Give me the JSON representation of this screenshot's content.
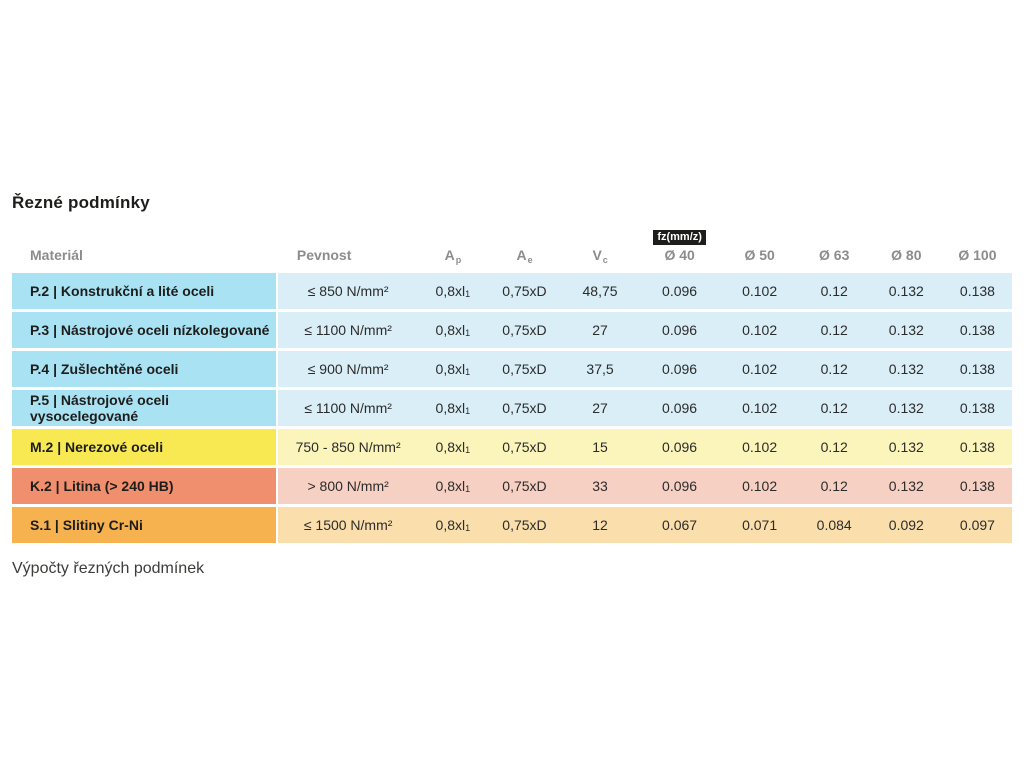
{
  "page": {
    "title": "Řezné podmínky",
    "footer_text": "Výpočty řezných podmínek"
  },
  "colors": {
    "blue_dark": "#a9e2f3",
    "blue_light": "#d9eef7",
    "yellow_dark": "#f8e952",
    "yellow_light": "#fbf5bb",
    "salmon_dark": "#ef8f6d",
    "salmon_light": "#f7d0c4",
    "orange_dark": "#f6b24e",
    "orange_light": "#fadfac",
    "badge_bg": "#1d1d1b",
    "badge_text": "#ffffff",
    "header_text": "#8c8c8c"
  },
  "table": {
    "badge": "fz(mm/z)",
    "headers": {
      "material": "Materiál",
      "pevnost": "Pevnost",
      "ap": "A",
      "ap_sub": "p",
      "ae": "A",
      "ae_sub": "e",
      "vc": "V",
      "vc_sub": "c",
      "d40": "Ø 40",
      "d50": "Ø 50",
      "d63": "Ø 63",
      "d80": "Ø 80",
      "d100": "Ø 100"
    },
    "rows": [
      {
        "material": "P.2 | Konstrukční a lité oceli",
        "pevnost": "≤ 850 N/mm²",
        "ap": "0,8xl",
        "ap_sub": "1",
        "ae": "0,75xD",
        "vc": "48,75",
        "d40": "0.096",
        "d50": "0.102",
        "d63": "0.12",
        "d80": "0.132",
        "d100": "0.138"
      },
      {
        "material": "P.3 | Nástrojové oceli nízkolegované",
        "pevnost": "≤ 1100 N/mm²",
        "ap": "0,8xl",
        "ap_sub": "1",
        "ae": "0,75xD",
        "vc": "27",
        "d40": "0.096",
        "d50": "0.102",
        "d63": "0.12",
        "d80": "0.132",
        "d100": "0.138"
      },
      {
        "material": "P.4 | Zušlechtěné oceli",
        "pevnost": "≤ 900 N/mm²",
        "ap": "0,8xl",
        "ap_sub": "1",
        "ae": "0,75xD",
        "vc": "37,5",
        "d40": "0.096",
        "d50": "0.102",
        "d63": "0.12",
        "d80": "0.132",
        "d100": "0.138"
      },
      {
        "material": "P.5 | Nástrojové oceli vysocelegované",
        "pevnost": "≤ 1100 N/mm²",
        "ap": "0,8xl",
        "ap_sub": "1",
        "ae": "0,75xD",
        "vc": "27",
        "d40": "0.096",
        "d50": "0.102",
        "d63": "0.12",
        "d80": "0.132",
        "d100": "0.138"
      },
      {
        "material": "M.2 | Nerezové oceli",
        "pevnost": "750 - 850 N/mm²",
        "ap": "0,8xl",
        "ap_sub": "1",
        "ae": "0,75xD",
        "vc": "15",
        "d40": "0.096",
        "d50": "0.102",
        "d63": "0.12",
        "d80": "0.132",
        "d100": "0.138"
      },
      {
        "material": "K.2 | Litina (> 240 HB)",
        "pevnost": "> 800 N/mm²",
        "ap": "0,8xl",
        "ap_sub": "1",
        "ae": "0,75xD",
        "vc": "33",
        "d40": "0.096",
        "d50": "0.102",
        "d63": "0.12",
        "d80": "0.132",
        "d100": "0.138"
      },
      {
        "material": "S.1 | Slitiny Cr-Ni",
        "pevnost": "≤ 1500 N/mm²",
        "ap": "0,8xl",
        "ap_sub": "1",
        "ae": "0,75xD",
        "vc": "12",
        "d40": "0.067",
        "d50": "0.071",
        "d63": "0.084",
        "d80": "0.092",
        "d100": "0.097"
      }
    ]
  }
}
